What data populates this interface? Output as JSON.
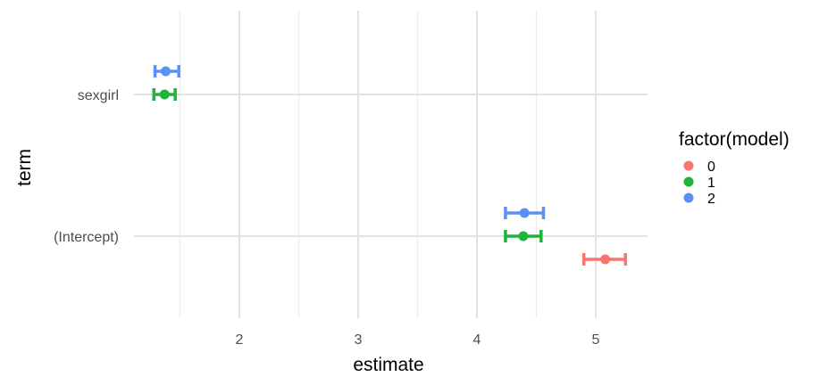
{
  "chart_data": {
    "type": "scatter",
    "subtype": "coefficient-plot-with-error-bars",
    "xlabel": "estimate",
    "ylabel": "term",
    "terms": [
      "(Intercept)",
      "sexgirl"
    ],
    "x_ticks": [
      "2",
      "3",
      "4",
      "5"
    ],
    "xlim": [
      1.2,
      5.45
    ],
    "grid": true,
    "legend": {
      "title": "factor(model)",
      "placement": "right",
      "items": [
        {
          "label": "0",
          "color": "#F8766D"
        },
        {
          "label": "1",
          "color": "#1FB33A"
        },
        {
          "label": "2",
          "color": "#5B8FF9"
        }
      ]
    },
    "series": [
      {
        "name": "0",
        "color": "#F8766D",
        "points": [
          {
            "term": "(Intercept)",
            "estimate": 5.08,
            "low": 4.9,
            "high": 5.25
          }
        ]
      },
      {
        "name": "1",
        "color": "#1FB33A",
        "points": [
          {
            "term": "(Intercept)",
            "estimate": 4.39,
            "low": 4.24,
            "high": 4.54
          },
          {
            "term": "sexgirl",
            "estimate": 1.37,
            "low": 1.28,
            "high": 1.46
          }
        ]
      },
      {
        "name": "2",
        "color": "#5B8FF9",
        "points": [
          {
            "term": "(Intercept)",
            "estimate": 4.4,
            "low": 4.24,
            "high": 4.56
          },
          {
            "term": "sexgirl",
            "estimate": 1.38,
            "low": 1.29,
            "high": 1.49
          }
        ]
      }
    ]
  }
}
